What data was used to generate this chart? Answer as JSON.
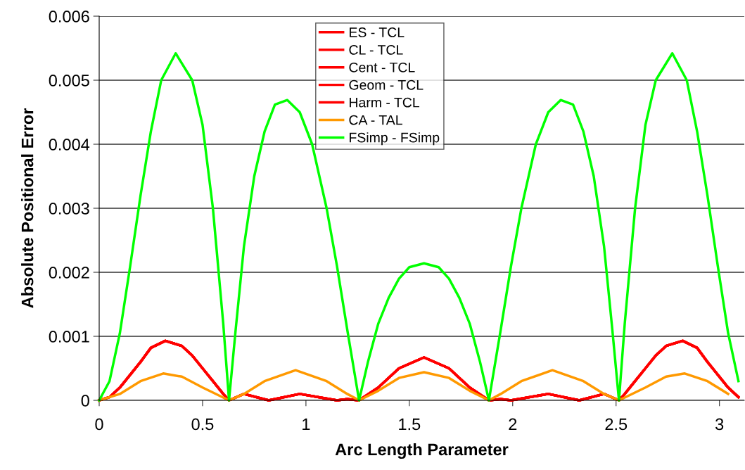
{
  "chart_data": {
    "type": "line",
    "xlabel": "Arc Length Parameter",
    "ylabel": "Absolute Positional Error",
    "xlim": [
      0,
      3.12
    ],
    "xticks": [
      0,
      0.5,
      1,
      1.5,
      2,
      2.5,
      3
    ],
    "ylim": [
      0,
      0.006
    ],
    "yticks": [
      0,
      0.001,
      0.002,
      0.003,
      0.004,
      0.005,
      0.006
    ],
    "grid": "y",
    "legend": "top",
    "marker": "none",
    "line_style": "solid",
    "series": [
      {
        "name": "ES - TCL",
        "color": "#ff0000",
        "x": [
          0,
          0.05,
          0.1,
          0.15,
          0.2,
          0.25,
          0.32,
          0.4,
          0.45,
          0.5,
          0.55,
          0.6,
          0.628,
          0.7,
          0.82,
          0.97,
          1.15,
          1.2,
          1.257,
          1.35,
          1.45,
          1.571,
          1.692,
          1.792,
          1.885,
          1.942,
          1.992,
          2.172,
          2.322,
          2.442,
          2.514,
          2.542,
          2.592,
          2.642,
          2.692,
          2.742,
          2.822,
          2.892,
          2.942,
          2.992,
          3.042,
          3.092
        ],
        "values": [
          0,
          5e-05,
          0.0002,
          0.0004,
          0.0006,
          0.00082,
          0.00093,
          0.00085,
          0.0007,
          0.0005,
          0.0003,
          0.0001,
          0,
          0.0001,
          0,
          0.0001,
          0,
          2e-05,
          0,
          0.0002,
          0.0005,
          0.00067,
          0.0005,
          0.0002,
          0,
          2e-05,
          0,
          0.0001,
          0,
          0.0001,
          0,
          0.0001,
          0.0003,
          0.0005,
          0.0007,
          0.00085,
          0.00093,
          0.00082,
          0.0006,
          0.0004,
          0.0002,
          5e-05
        ]
      },
      {
        "name": "CL - TCL",
        "color": "#ff0000",
        "x": [
          0,
          0.05,
          0.1,
          0.15,
          0.2,
          0.25,
          0.32,
          0.4,
          0.45,
          0.5,
          0.55,
          0.6,
          0.628,
          0.7,
          0.82,
          0.97,
          1.15,
          1.2,
          1.257,
          1.35,
          1.45,
          1.571,
          1.692,
          1.792,
          1.885,
          1.942,
          1.992,
          2.172,
          2.322,
          2.442,
          2.514,
          2.542,
          2.592,
          2.642,
          2.692,
          2.742,
          2.822,
          2.892,
          2.942,
          2.992,
          3.042,
          3.092
        ],
        "values": [
          0,
          5e-05,
          0.0002,
          0.0004,
          0.0006,
          0.00082,
          0.00093,
          0.00085,
          0.0007,
          0.0005,
          0.0003,
          0.0001,
          0,
          0.0001,
          0,
          0.0001,
          0,
          2e-05,
          0,
          0.0002,
          0.0005,
          0.00067,
          0.0005,
          0.0002,
          0,
          2e-05,
          0,
          0.0001,
          0,
          0.0001,
          0,
          0.0001,
          0.0003,
          0.0005,
          0.0007,
          0.00085,
          0.00093,
          0.00082,
          0.0006,
          0.0004,
          0.0002,
          5e-05
        ]
      },
      {
        "name": "Cent - TCL",
        "color": "#ff0000",
        "x": [
          0,
          0.05,
          0.1,
          0.15,
          0.2,
          0.25,
          0.32,
          0.4,
          0.45,
          0.5,
          0.55,
          0.6,
          0.628,
          0.7,
          0.82,
          0.97,
          1.15,
          1.2,
          1.257,
          1.35,
          1.45,
          1.571,
          1.692,
          1.792,
          1.885,
          1.942,
          1.992,
          2.172,
          2.322,
          2.442,
          2.514,
          2.542,
          2.592,
          2.642,
          2.692,
          2.742,
          2.822,
          2.892,
          2.942,
          2.992,
          3.042,
          3.092
        ],
        "values": [
          0,
          5e-05,
          0.0002,
          0.0004,
          0.0006,
          0.00082,
          0.00093,
          0.00085,
          0.0007,
          0.0005,
          0.0003,
          0.0001,
          0,
          0.0001,
          0,
          0.0001,
          0,
          2e-05,
          0,
          0.0002,
          0.0005,
          0.00067,
          0.0005,
          0.0002,
          0,
          2e-05,
          0,
          0.0001,
          0,
          0.0001,
          0,
          0.0001,
          0.0003,
          0.0005,
          0.0007,
          0.00085,
          0.00093,
          0.00082,
          0.0006,
          0.0004,
          0.0002,
          5e-05
        ]
      },
      {
        "name": "Geom - TCL",
        "color": "#ff0000",
        "x": [
          0,
          0.05,
          0.1,
          0.15,
          0.2,
          0.25,
          0.32,
          0.4,
          0.45,
          0.5,
          0.55,
          0.6,
          0.628,
          0.7,
          0.82,
          0.97,
          1.15,
          1.2,
          1.257,
          1.35,
          1.45,
          1.571,
          1.692,
          1.792,
          1.885,
          1.942,
          1.992,
          2.172,
          2.322,
          2.442,
          2.514,
          2.542,
          2.592,
          2.642,
          2.692,
          2.742,
          2.822,
          2.892,
          2.942,
          2.992,
          3.042,
          3.092
        ],
        "values": [
          0,
          5e-05,
          0.0002,
          0.0004,
          0.0006,
          0.00082,
          0.00093,
          0.00085,
          0.0007,
          0.0005,
          0.0003,
          0.0001,
          0,
          0.0001,
          0,
          0.0001,
          0,
          2e-05,
          0,
          0.0002,
          0.0005,
          0.00067,
          0.0005,
          0.0002,
          0,
          2e-05,
          0,
          0.0001,
          0,
          0.0001,
          0,
          0.0001,
          0.0003,
          0.0005,
          0.0007,
          0.00085,
          0.00093,
          0.00082,
          0.0006,
          0.0004,
          0.0002,
          5e-05
        ]
      },
      {
        "name": "Harm - TCL",
        "color": "#ff0000",
        "x": [
          0,
          0.05,
          0.1,
          0.15,
          0.2,
          0.25,
          0.32,
          0.4,
          0.45,
          0.5,
          0.55,
          0.6,
          0.628,
          0.7,
          0.82,
          0.97,
          1.15,
          1.2,
          1.257,
          1.35,
          1.45,
          1.571,
          1.692,
          1.792,
          1.885,
          1.942,
          1.992,
          2.172,
          2.322,
          2.442,
          2.514,
          2.542,
          2.592,
          2.642,
          2.692,
          2.742,
          2.822,
          2.892,
          2.942,
          2.992,
          3.042,
          3.092
        ],
        "values": [
          0,
          5e-05,
          0.0002,
          0.0004,
          0.0006,
          0.00082,
          0.00093,
          0.00085,
          0.0007,
          0.0005,
          0.0003,
          0.0001,
          0,
          0.0001,
          0,
          0.0001,
          0,
          2e-05,
          0,
          0.0002,
          0.0005,
          0.00067,
          0.0005,
          0.0002,
          0,
          2e-05,
          0,
          0.0001,
          0,
          0.0001,
          0,
          0.0001,
          0.0003,
          0.0005,
          0.0007,
          0.00085,
          0.00093,
          0.00082,
          0.0006,
          0.0004,
          0.0002,
          5e-05
        ]
      },
      {
        "name": "CA - TAL",
        "color": "#ff9900",
        "x": [
          0,
          0.1,
          0.2,
          0.31,
          0.4,
          0.5,
          0.628,
          0.7,
          0.8,
          0.95,
          1.1,
          1.2,
          1.257,
          1.35,
          1.45,
          1.571,
          1.692,
          1.792,
          1.885,
          1.942,
          2.042,
          2.192,
          2.342,
          2.442,
          2.514,
          2.642,
          2.742,
          2.832,
          2.942,
          3.042
        ],
        "values": [
          0,
          0.0001,
          0.0003,
          0.00042,
          0.00037,
          0.0002,
          0,
          0.0001,
          0.0003,
          0.00047,
          0.0003,
          0.0001,
          0,
          0.00015,
          0.00035,
          0.00044,
          0.00035,
          0.00015,
          0,
          0.0001,
          0.0003,
          0.00047,
          0.0003,
          0.0001,
          0,
          0.0002,
          0.00037,
          0.00042,
          0.0003,
          0.0001
        ]
      },
      {
        "name": "FSimp - FSimp",
        "color": "#00ff00",
        "x": [
          0,
          0.05,
          0.1,
          0.15,
          0.2,
          0.25,
          0.3,
          0.37,
          0.45,
          0.5,
          0.55,
          0.6,
          0.628,
          0.66,
          0.7,
          0.75,
          0.8,
          0.85,
          0.91,
          0.97,
          1.03,
          1.1,
          1.15,
          1.2,
          1.257,
          1.3,
          1.35,
          1.4,
          1.45,
          1.5,
          1.571,
          1.642,
          1.692,
          1.742,
          1.792,
          1.842,
          1.885,
          1.942,
          1.992,
          2.042,
          2.112,
          2.172,
          2.232,
          2.292,
          2.342,
          2.392,
          2.442,
          2.482,
          2.514,
          2.542,
          2.592,
          2.642,
          2.692,
          2.772,
          2.842,
          2.892,
          2.942,
          2.992,
          3.042,
          3.092
        ],
        "values": [
          0,
          0.0003,
          0.00105,
          0.0021,
          0.0032,
          0.0042,
          0.005,
          0.00542,
          0.005,
          0.0043,
          0.003,
          0.0012,
          0,
          0.0011,
          0.0024,
          0.0035,
          0.0042,
          0.00462,
          0.00469,
          0.0045,
          0.004,
          0.003,
          0.0021,
          0.0011,
          0,
          0.0006,
          0.0012,
          0.0016,
          0.0019,
          0.00208,
          0.00214,
          0.00208,
          0.0019,
          0.0016,
          0.0012,
          0.0006,
          0,
          0.0011,
          0.0021,
          0.003,
          0.004,
          0.0045,
          0.00469,
          0.00462,
          0.0042,
          0.0035,
          0.0024,
          0.0011,
          0,
          0.0012,
          0.003,
          0.0043,
          0.005,
          0.00542,
          0.005,
          0.0042,
          0.0032,
          0.0021,
          0.00105,
          0.0003
        ]
      }
    ]
  }
}
